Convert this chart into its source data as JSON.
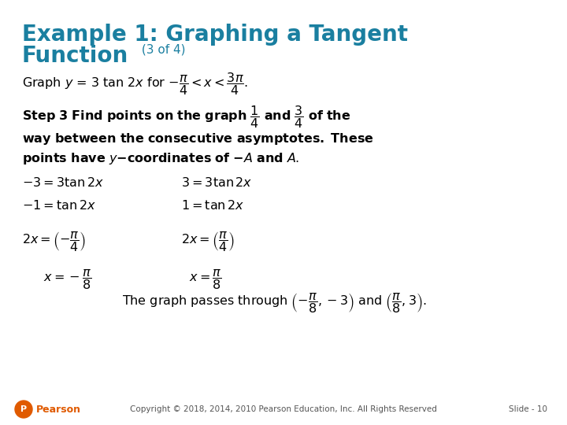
{
  "background_color": "#ffffff",
  "title_line1": "Example 1: Graphing a Tangent",
  "title_line2": "Function",
  "title_suffix": " (3 of 4)",
  "title_color": "#1a7fa0",
  "title_fontsize": 20,
  "title_suffix_fontsize": 11,
  "body_color": "#000000",
  "body_fontsize": 11.5,
  "footer_color": "#555555",
  "footer_fontsize": 7.5,
  "pearson_color": "#e05a00",
  "slide_text": "Slide - 10",
  "copyright_text": "Copyright © 2018, 2014, 2010 Pearson Education, Inc. All Rights Reserved"
}
